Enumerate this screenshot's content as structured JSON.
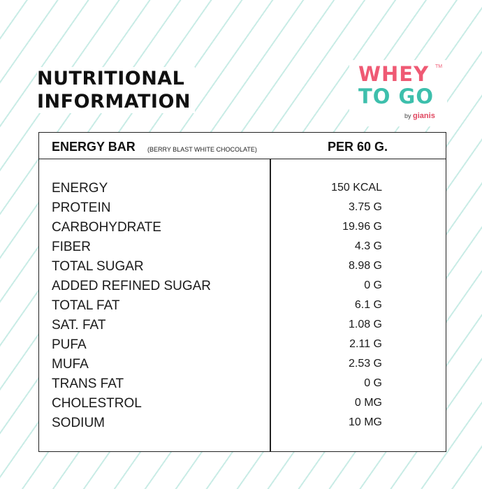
{
  "title_lines": [
    "NUTRITIONAL",
    "INFORMATION"
  ],
  "logo": {
    "line1": "WHEY",
    "line2": "TO GO",
    "trademark": "TM",
    "by": "by",
    "brand": "gianis",
    "colors": {
      "pink": "#ef5a74",
      "teal": "#3dbfac"
    }
  },
  "table": {
    "product": "ENERGY BAR",
    "variant": "(BERRY BLAST WHITE CHOCOLATE)",
    "serving": "PER 60 G.",
    "rows": [
      {
        "name": "ENERGY",
        "value": "150 KCAL"
      },
      {
        "name": "PROTEIN",
        "value": "3.75 G"
      },
      {
        "name": "CARBOHYDRATE",
        "value": "19.96 G"
      },
      {
        "name": "FIBER",
        "value": "4.3 G"
      },
      {
        "name": "TOTAL SUGAR",
        "value": "8.98 G"
      },
      {
        "name": "ADDED REFINED SUGAR",
        "value": "0 G"
      },
      {
        "name": "TOTAL FAT",
        "value": "6.1 G"
      },
      {
        "name": "SAT. FAT",
        "value": "1.08 G"
      },
      {
        "name": "PUFA",
        "value": "2.11 G"
      },
      {
        "name": "MUFA",
        "value": "2.53 G"
      },
      {
        "name": "TRANS FAT",
        "value": "0 G"
      },
      {
        "name": "CHOLESTROL",
        "value": "0 MG"
      },
      {
        "name": "SODIUM",
        "value": "10 MG"
      }
    ]
  }
}
